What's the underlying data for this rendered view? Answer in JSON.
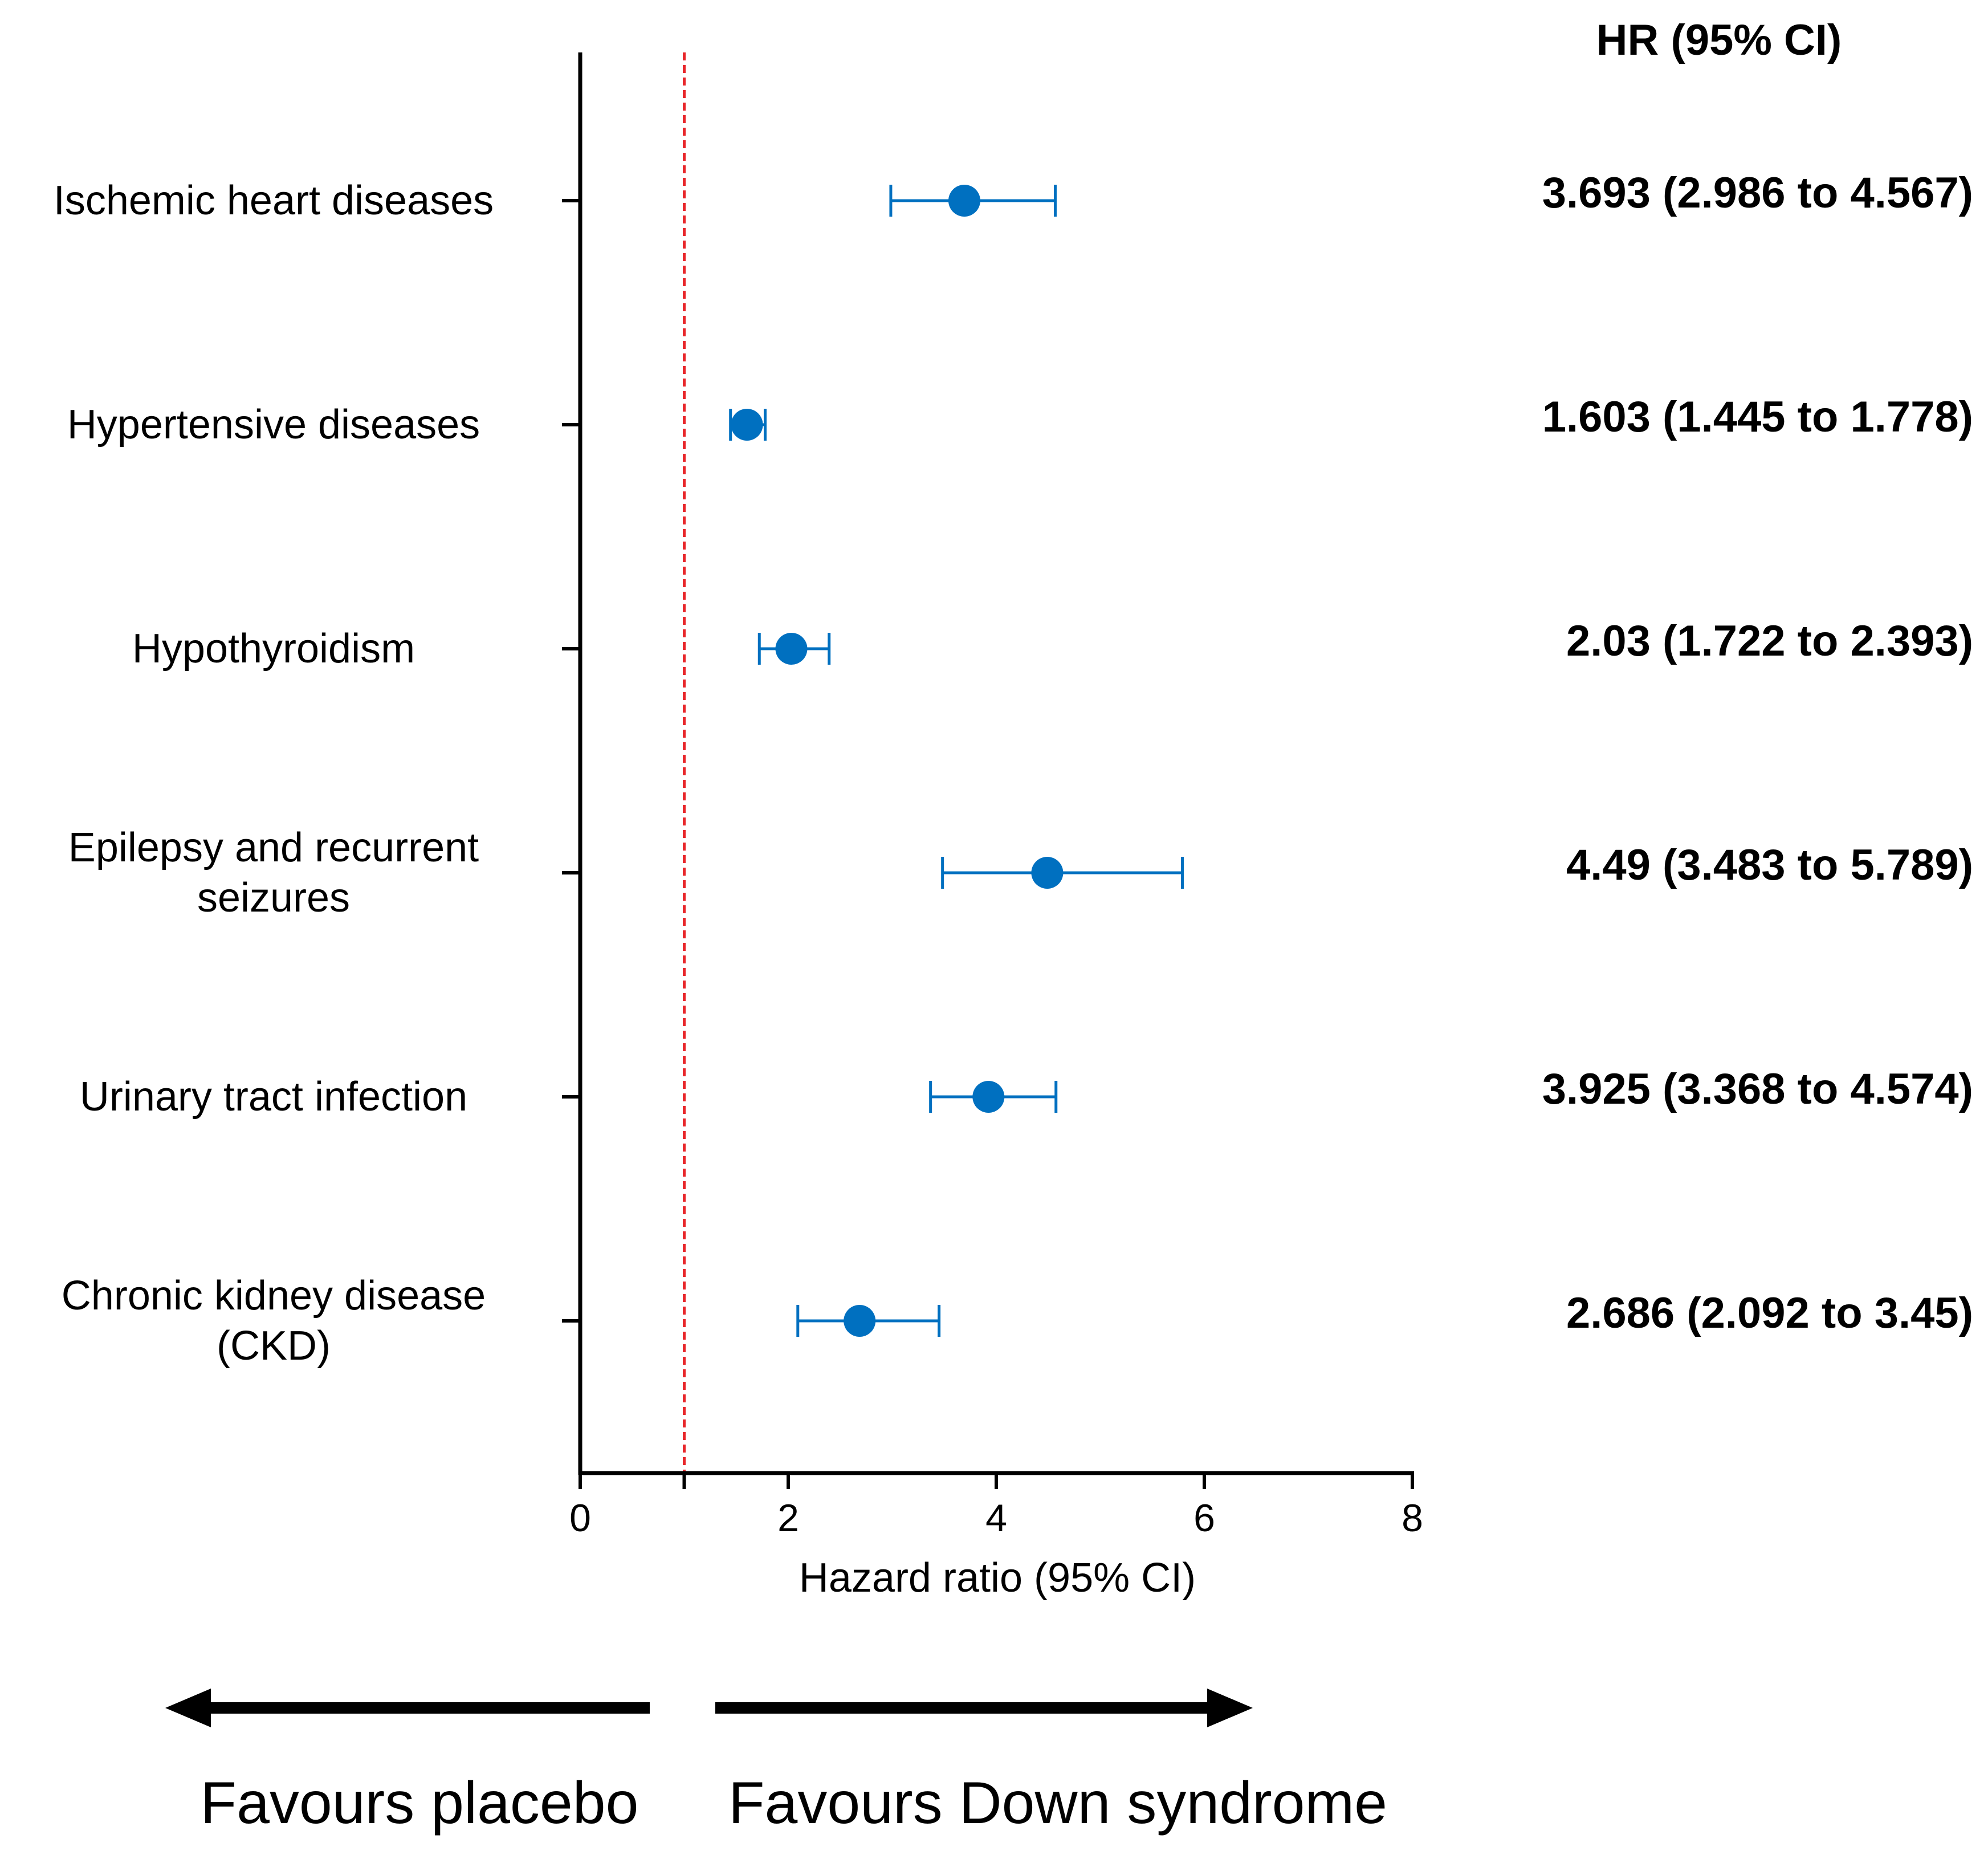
{
  "chart_data": {
    "type": "forest",
    "title": "",
    "xlabel": "Hazard ratio (95% CI)",
    "ylabel": "",
    "xlim": [
      0,
      8
    ],
    "xticks": [
      "0",
      "2",
      "4",
      "6",
      "8"
    ],
    "reference_line": 1,
    "hr_column_header": "HR (95% CI)",
    "rows": [
      {
        "label": [
          "Ischemic heart diseases"
        ],
        "hr": 3.693,
        "lower": 2.986,
        "upper": 4.567,
        "hr_text": "3.693 (2.986 to 4.567)"
      },
      {
        "label": [
          "Hypertensive diseases"
        ],
        "hr": 1.603,
        "lower": 1.445,
        "upper": 1.778,
        "hr_text": "1.603 (1.445 to 1.778)"
      },
      {
        "label": [
          "Hypothyroidism"
        ],
        "hr": 2.03,
        "lower": 1.722,
        "upper": 2.393,
        "hr_text": "2.03 (1.722 to 2.393)"
      },
      {
        "label": [
          "Epilepsy and recurrent",
          "seizures"
        ],
        "hr": 4.49,
        "lower": 3.483,
        "upper": 5.789,
        "hr_text": "4.49 (3.483 to 5.789)"
      },
      {
        "label": [
          "Urinary tract infection"
        ],
        "hr": 3.925,
        "lower": 3.368,
        "upper": 4.574,
        "hr_text": "3.925 (3.368 to 4.574)"
      },
      {
        "label": [
          "Chronic kidney disease",
          "(CKD)"
        ],
        "hr": 2.686,
        "lower": 2.092,
        "upper": 3.45,
        "hr_text": "2.686 (2.092 to 3.45)"
      }
    ],
    "favours_left": "Favours placebo",
    "favours_right": "Favours Down syndrome",
    "colors": {
      "marker": "#0070C0",
      "reference_line": "#E8262A",
      "axis": "#000000",
      "text": "#000000"
    }
  }
}
